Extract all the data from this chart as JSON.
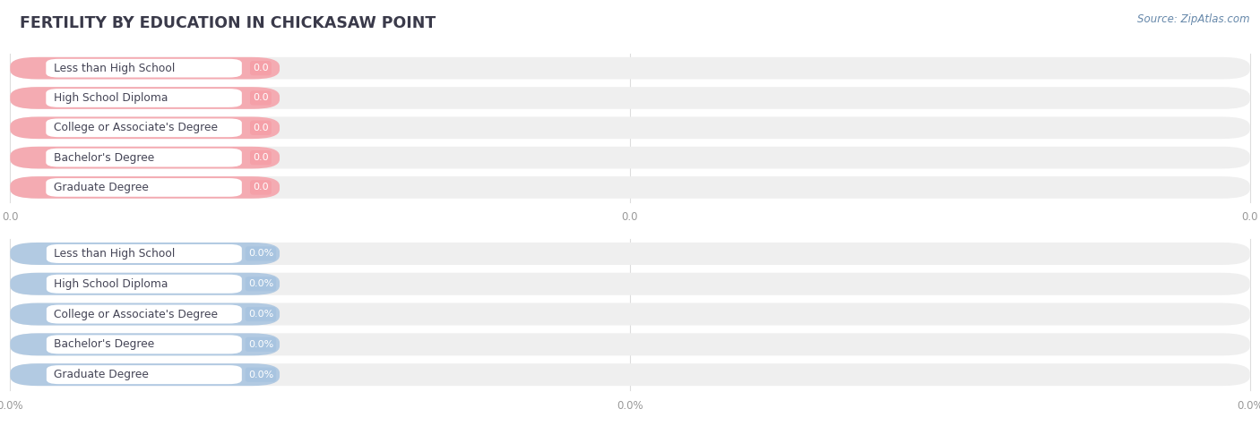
{
  "title": "FERTILITY BY EDUCATION IN CHICKASAW POINT",
  "source": "Source: ZipAtlas.com",
  "categories": [
    "Less than High School",
    "High School Diploma",
    "College or Associate's Degree",
    "Bachelor's Degree",
    "Graduate Degree"
  ],
  "values_top": [
    0.0,
    0.0,
    0.0,
    0.0,
    0.0
  ],
  "values_bottom": [
    0.0,
    0.0,
    0.0,
    0.0,
    0.0
  ],
  "top_color": "#f5a0a8",
  "bottom_color": "#a8c4e0",
  "bar_bg_color": "#efefef",
  "label_text_color": "#444455",
  "title_color": "#3a3a4a",
  "axis_tick_color": "#999999",
  "background_color": "#ffffff",
  "grid_color": "#dddddd",
  "source_color": "#6688aa"
}
